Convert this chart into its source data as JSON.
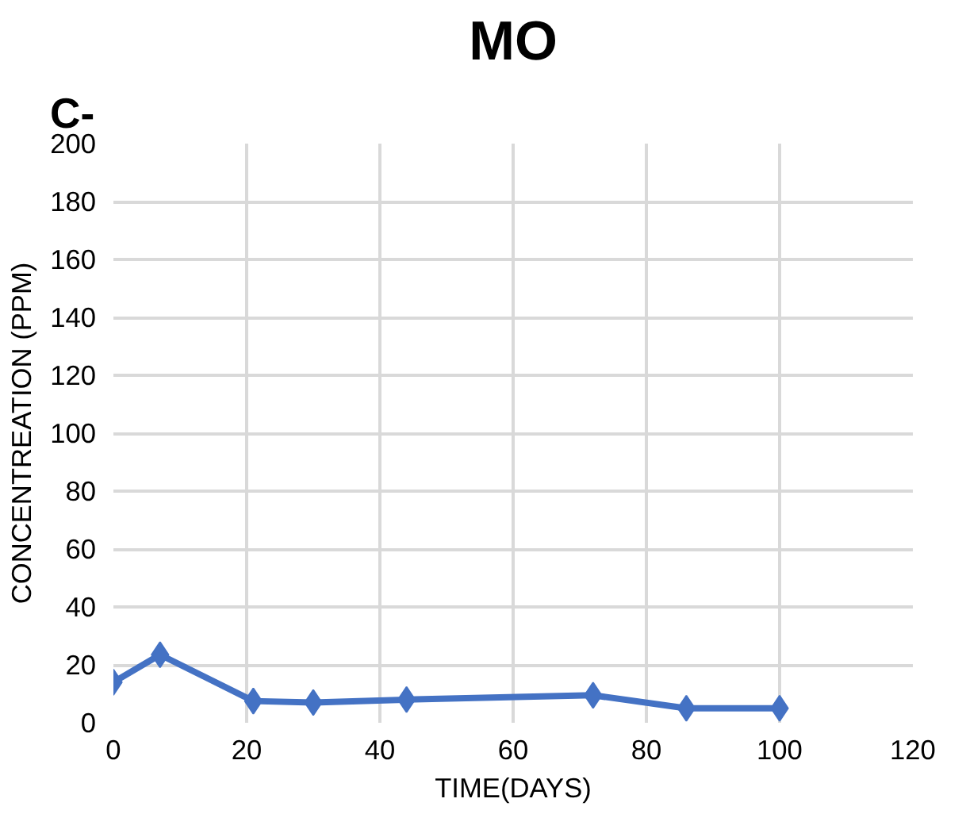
{
  "chart_data": {
    "type": "line",
    "title": "MO",
    "annotations": [
      "C-"
    ],
    "xlabel": "TIME(DAYS)",
    "ylabel": "CONCENTREATION (PPM)",
    "x": [
      0,
      7,
      21,
      30,
      44,
      72,
      86,
      100
    ],
    "series": [
      {
        "color": "#4472c4",
        "values": [
          14,
          23.5,
          7.5,
          7,
          8,
          9.5,
          5,
          5
        ]
      }
    ],
    "xlim": [
      0,
      120
    ],
    "xticks": [
      0,
      20,
      40,
      60,
      80,
      100,
      120
    ],
    "ylim": [
      0,
      200
    ],
    "yticks": [
      0,
      20,
      40,
      60,
      80,
      100,
      120,
      140,
      160,
      180,
      200
    ],
    "grid": true,
    "marker": "diamond",
    "line_style": "solid"
  }
}
